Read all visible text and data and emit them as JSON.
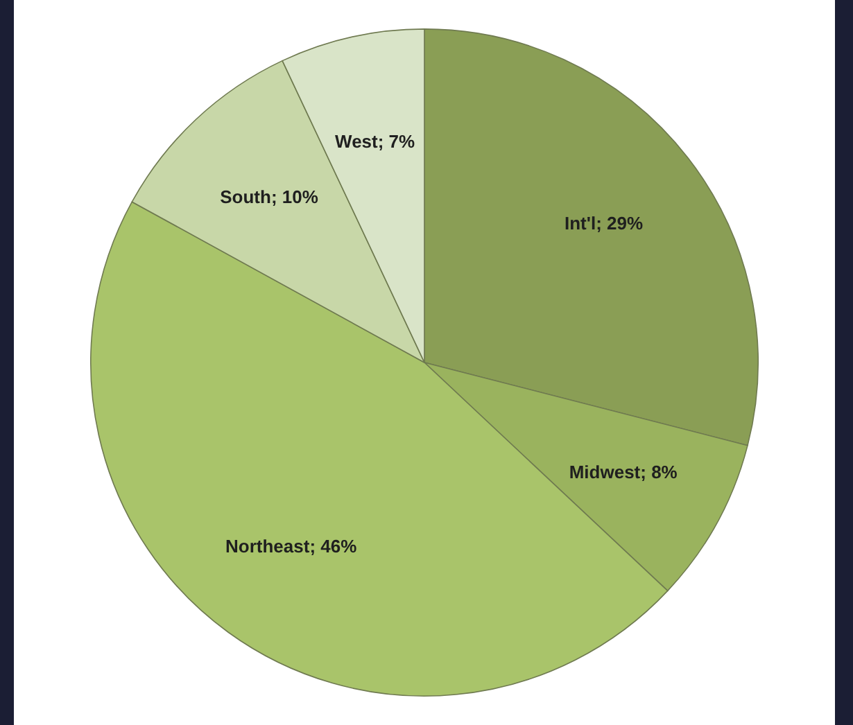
{
  "chart_data": {
    "type": "pie",
    "categories": [
      "Int'l",
      "Midwest",
      "Northeast",
      "South",
      "West"
    ],
    "values": [
      29,
      8,
      46,
      10,
      7
    ],
    "colors": [
      "#8a9e55",
      "#9ab35e",
      "#a9c46a",
      "#c8d7a8",
      "#d9e4c8"
    ],
    "value_labels": [
      "29%",
      "8%",
      "46%",
      "10%",
      "7%"
    ]
  }
}
